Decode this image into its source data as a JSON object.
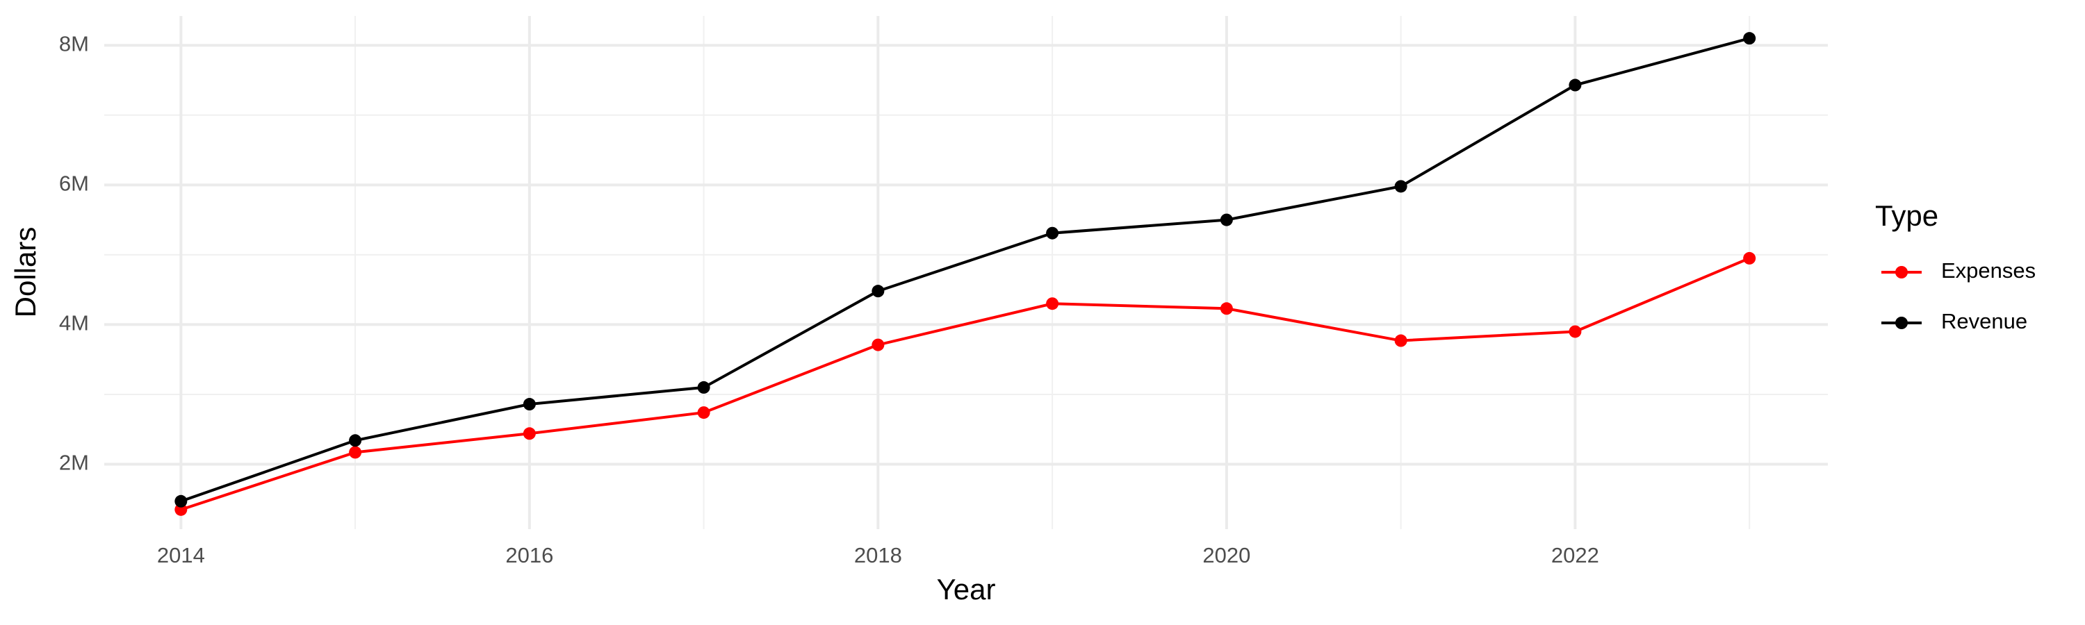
{
  "chart_data": {
    "type": "line",
    "x_label": "Year",
    "y_label": "Dollars",
    "legend_title": "Type",
    "x": [
      2014,
      2015,
      2016,
      2017,
      2018,
      2019,
      2020,
      2021,
      2022,
      2023
    ],
    "series": [
      {
        "name": "Expenses",
        "color": "#ff0000",
        "values": [
          1350000,
          2170000,
          2440000,
          2740000,
          3710000,
          4300000,
          4230000,
          3770000,
          3900000,
          4950000
        ]
      },
      {
        "name": "Revenue",
        "color": "#000000",
        "values": [
          1470000,
          2340000,
          2860000,
          3100000,
          4480000,
          5310000,
          5500000,
          5980000,
          7430000,
          8100000
        ]
      }
    ],
    "xlim": [
      2013.56,
      2023.45
    ],
    "xticks": [
      2014,
      2016,
      2018,
      2020,
      2022
    ],
    "x_minor_ticks": [
      2015,
      2017,
      2019,
      2021,
      2023
    ],
    "ylim": [
      1070000,
      8420000
    ],
    "yticks": [
      {
        "value": 2000000,
        "label": "2M"
      },
      {
        "value": 4000000,
        "label": "4M"
      },
      {
        "value": 6000000,
        "label": "6M"
      },
      {
        "value": 8000000,
        "label": "8M"
      }
    ],
    "y_minor_ticks": [
      3000000,
      5000000,
      7000000
    ],
    "grid": true,
    "legend": "right"
  }
}
